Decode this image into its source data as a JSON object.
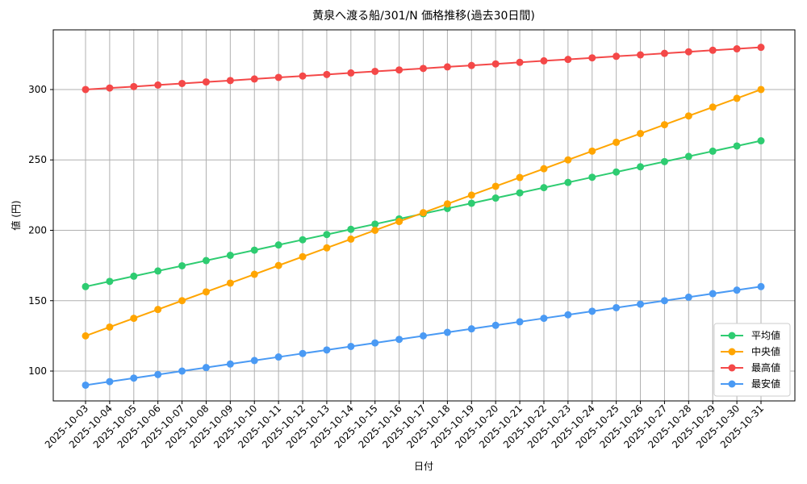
{
  "chart_data": {
    "type": "line",
    "title": "黄泉へ渡る船/301/N 価格推移(過去30日間)",
    "x_label": "日付",
    "y_label": "値 (円)",
    "categories": [
      "2025-10-03",
      "2025-10-04",
      "2025-10-05",
      "2025-10-06",
      "2025-10-07",
      "2025-10-08",
      "2025-10-09",
      "2025-10-10",
      "2025-10-11",
      "2025-10-12",
      "2025-10-13",
      "2025-10-14",
      "2025-10-15",
      "2025-10-16",
      "2025-10-17",
      "2025-10-18",
      "2025-10-19",
      "2025-10-20",
      "2025-10-21",
      "2025-10-22",
      "2025-10-23",
      "2025-10-24",
      "2025-10-25",
      "2025-10-26",
      "2025-10-27",
      "2025-10-28",
      "2025-10-29",
      "2025-10-30",
      "2025-10-31"
    ],
    "series": [
      {
        "name": "平均値",
        "color": "#2ecc71",
        "values": [
          160,
          163.7,
          167.4,
          171.1,
          174.8,
          178.5,
          182.2,
          185.9,
          189.6,
          193.3,
          197,
          200.7,
          204.4,
          208.1,
          211.8,
          215.5,
          219.2,
          222.9,
          226.6,
          230.3,
          234,
          237.7,
          241.4,
          245.1,
          248.8,
          252.5,
          256.2,
          259.9,
          263.6
        ]
      },
      {
        "name": "中央値",
        "color": "#ffa500",
        "values": [
          125,
          131.25,
          137.5,
          143.75,
          150,
          156.25,
          162.5,
          168.75,
          175,
          181.25,
          187.5,
          193.75,
          200,
          206.25,
          212.5,
          218.75,
          225,
          231.25,
          237.5,
          243.75,
          250,
          256.25,
          262.5,
          268.75,
          275,
          281.25,
          287.5,
          293.75,
          300
        ]
      },
      {
        "name": "最高値",
        "color": "#f44848",
        "values": [
          300,
          301.1,
          302.1,
          303.2,
          304.3,
          305.4,
          306.4,
          307.5,
          308.6,
          309.6,
          310.7,
          311.8,
          312.9,
          313.9,
          315,
          316.1,
          317.1,
          318.2,
          319.3,
          320.4,
          321.4,
          322.5,
          323.6,
          324.6,
          325.7,
          326.8,
          327.9,
          328.9,
          330
        ]
      },
      {
        "name": "最安値",
        "color": "#4a9af4",
        "values": [
          90,
          92.5,
          95,
          97.5,
          100,
          102.5,
          105,
          107.5,
          110,
          112.5,
          115,
          117.5,
          120,
          122.5,
          125,
          127.5,
          130,
          132.5,
          135,
          137.5,
          140,
          142.5,
          145,
          147.5,
          150,
          152.5,
          155,
          157.5,
          160
        ]
      }
    ],
    "ylim": [
      78.8,
      342.4
    ],
    "yticks": [
      100,
      150,
      200,
      250,
      300
    ],
    "grid": true,
    "legend": "lower right"
  }
}
